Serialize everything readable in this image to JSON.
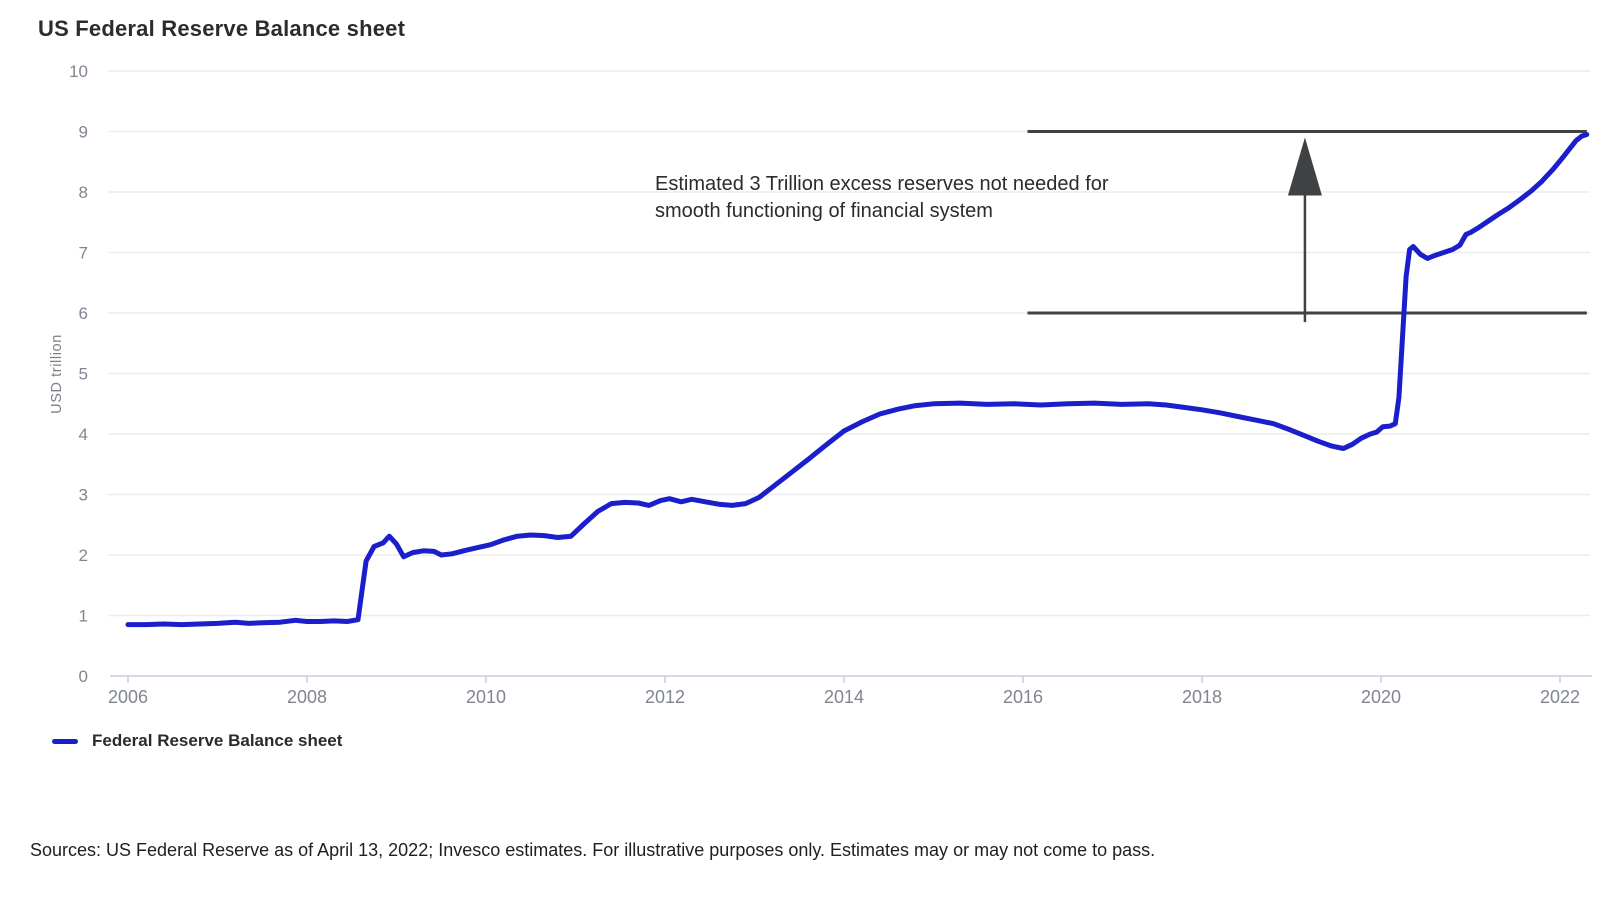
{
  "title": "US Federal Reserve Balance sheet",
  "annotation": {
    "line1": "Estimated 3 Trillion excess reserves not needed for",
    "line2": "smooth functioning of financial system",
    "upper_line_value": 9,
    "lower_line_value": 6,
    "line_span_years": [
      2016.05,
      2022.3
    ],
    "arrow_year": 2019.15,
    "arrow_from_value": 5.85,
    "arrow_to_value": 8.9
  },
  "legend": {
    "label": "Federal Reserve Balance sheet"
  },
  "footer": {
    "source_text": "Sources: US Federal Reserve as of April 13, 2022; Invesco estimates. For illustrative purposes only. Estimates may or may not come to pass."
  },
  "colors": {
    "line": "#1b1fcb",
    "annotation_line": "#3f4142",
    "grid": "#ececec",
    "axis": "#c5cee4",
    "tick_label": "#81858f",
    "text_dark": "#2b2b2b"
  },
  "chart_data": {
    "type": "line",
    "title": "US Federal Reserve Balance sheet",
    "xlabel": "",
    "ylabel": "USD trillion",
    "ylim": [
      0,
      10
    ],
    "xlim": [
      2006,
      2022.35
    ],
    "y_ticks": [
      0,
      1,
      2,
      3,
      4,
      5,
      6,
      7,
      8,
      9,
      10
    ],
    "x_ticks": [
      2006,
      2008,
      2010,
      2012,
      2014,
      2016,
      2018,
      2020,
      2022
    ],
    "grid": "horizontal",
    "legend_position": "bottom-left",
    "annotations": [
      {
        "type": "hline",
        "value": 9,
        "from_year": 2016.05,
        "to_year": 2022.3
      },
      {
        "type": "hline",
        "value": 6,
        "from_year": 2016.05,
        "to_year": 2022.3
      },
      {
        "type": "arrow-up",
        "year": 2019.15,
        "from_value": 5.85,
        "to_value": 8.9
      },
      {
        "type": "text",
        "text": "Estimated 3 Trillion excess reserves not needed for smooth functioning of financial system"
      }
    ],
    "series": [
      {
        "name": "Federal Reserve Balance sheet",
        "color": "#1b1fcb",
        "points": [
          [
            2006.0,
            0.85
          ],
          [
            2006.2,
            0.85
          ],
          [
            2006.4,
            0.86
          ],
          [
            2006.6,
            0.85
          ],
          [
            2006.8,
            0.86
          ],
          [
            2007.0,
            0.87
          ],
          [
            2007.2,
            0.89
          ],
          [
            2007.35,
            0.87
          ],
          [
            2007.5,
            0.88
          ],
          [
            2007.7,
            0.89
          ],
          [
            2007.87,
            0.92
          ],
          [
            2008.0,
            0.9
          ],
          [
            2008.15,
            0.9
          ],
          [
            2008.3,
            0.91
          ],
          [
            2008.45,
            0.9
          ],
          [
            2008.57,
            0.93
          ],
          [
            2008.66,
            1.9
          ],
          [
            2008.75,
            2.14
          ],
          [
            2008.85,
            2.2
          ],
          [
            2008.92,
            2.31
          ],
          [
            2009.0,
            2.18
          ],
          [
            2009.08,
            1.97
          ],
          [
            2009.18,
            2.04
          ],
          [
            2009.3,
            2.07
          ],
          [
            2009.42,
            2.06
          ],
          [
            2009.5,
            2.0
          ],
          [
            2009.62,
            2.02
          ],
          [
            2009.75,
            2.07
          ],
          [
            2009.9,
            2.12
          ],
          [
            2010.05,
            2.17
          ],
          [
            2010.2,
            2.25
          ],
          [
            2010.35,
            2.31
          ],
          [
            2010.5,
            2.33
          ],
          [
            2010.65,
            2.32
          ],
          [
            2010.8,
            2.29
          ],
          [
            2010.95,
            2.31
          ],
          [
            2011.1,
            2.52
          ],
          [
            2011.25,
            2.72
          ],
          [
            2011.4,
            2.85
          ],
          [
            2011.55,
            2.87
          ],
          [
            2011.7,
            2.86
          ],
          [
            2011.82,
            2.82
          ],
          [
            2011.95,
            2.9
          ],
          [
            2012.05,
            2.93
          ],
          [
            2012.18,
            2.88
          ],
          [
            2012.3,
            2.92
          ],
          [
            2012.45,
            2.88
          ],
          [
            2012.6,
            2.84
          ],
          [
            2012.75,
            2.82
          ],
          [
            2012.9,
            2.85
          ],
          [
            2013.05,
            2.95
          ],
          [
            2013.2,
            3.12
          ],
          [
            2013.4,
            3.35
          ],
          [
            2013.6,
            3.58
          ],
          [
            2013.8,
            3.82
          ],
          [
            2014.0,
            4.05
          ],
          [
            2014.2,
            4.2
          ],
          [
            2014.4,
            4.33
          ],
          [
            2014.6,
            4.41
          ],
          [
            2014.8,
            4.47
          ],
          [
            2015.0,
            4.5
          ],
          [
            2015.3,
            4.51
          ],
          [
            2015.6,
            4.49
          ],
          [
            2015.9,
            4.5
          ],
          [
            2016.2,
            4.48
          ],
          [
            2016.5,
            4.5
          ],
          [
            2016.8,
            4.51
          ],
          [
            2017.1,
            4.49
          ],
          [
            2017.4,
            4.5
          ],
          [
            2017.6,
            4.48
          ],
          [
            2017.8,
            4.44
          ],
          [
            2018.0,
            4.4
          ],
          [
            2018.2,
            4.35
          ],
          [
            2018.4,
            4.29
          ],
          [
            2018.6,
            4.23
          ],
          [
            2018.8,
            4.17
          ],
          [
            2019.0,
            4.06
          ],
          [
            2019.15,
            3.97
          ],
          [
            2019.3,
            3.88
          ],
          [
            2019.45,
            3.8
          ],
          [
            2019.58,
            3.76
          ],
          [
            2019.68,
            3.83
          ],
          [
            2019.78,
            3.93
          ],
          [
            2019.88,
            4.0
          ],
          [
            2019.95,
            4.03
          ],
          [
            2020.02,
            4.12
          ],
          [
            2020.1,
            4.13
          ],
          [
            2020.16,
            4.17
          ],
          [
            2020.2,
            4.6
          ],
          [
            2020.24,
            5.6
          ],
          [
            2020.28,
            6.6
          ],
          [
            2020.32,
            7.05
          ],
          [
            2020.36,
            7.1
          ],
          [
            2020.44,
            6.97
          ],
          [
            2020.52,
            6.9
          ],
          [
            2020.6,
            6.95
          ],
          [
            2020.7,
            7.0
          ],
          [
            2020.8,
            7.05
          ],
          [
            2020.88,
            7.12
          ],
          [
            2020.95,
            7.3
          ],
          [
            2021.0,
            7.33
          ],
          [
            2021.1,
            7.42
          ],
          [
            2021.2,
            7.52
          ],
          [
            2021.3,
            7.62
          ],
          [
            2021.42,
            7.73
          ],
          [
            2021.55,
            7.87
          ],
          [
            2021.68,
            8.02
          ],
          [
            2021.8,
            8.18
          ],
          [
            2021.92,
            8.37
          ],
          [
            2022.02,
            8.55
          ],
          [
            2022.1,
            8.7
          ],
          [
            2022.18,
            8.85
          ],
          [
            2022.24,
            8.92
          ],
          [
            2022.3,
            8.95
          ]
        ]
      }
    ]
  }
}
